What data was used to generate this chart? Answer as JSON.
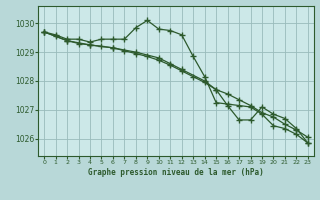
{
  "title": "Graphe pression niveau de la mer (hPa)",
  "background_color": "#b8d8d8",
  "plot_bg_color": "#cce8e8",
  "grid_color": "#99bbbb",
  "line_color": "#2d5a2d",
  "xlim": [
    -0.5,
    23.5
  ],
  "ylim": [
    1025.4,
    1030.6
  ],
  "yticks": [
    1026,
    1027,
    1028,
    1029,
    1030
  ],
  "xticks": [
    0,
    1,
    2,
    3,
    4,
    5,
    6,
    7,
    8,
    9,
    10,
    11,
    12,
    13,
    14,
    15,
    16,
    17,
    18,
    19,
    20,
    21,
    22,
    23
  ],
  "series": [
    {
      "x": [
        0,
        1,
        2,
        3,
        4,
        5,
        6,
        7,
        8,
        9,
        10,
        11,
        12,
        13,
        14,
        15,
        16,
        17,
        18,
        19,
        20,
        21,
        22,
        23
      ],
      "y": [
        1029.7,
        1029.6,
        1029.45,
        1029.45,
        1029.35,
        1029.45,
        1029.45,
        1029.45,
        1029.85,
        1030.1,
        1029.8,
        1029.75,
        1029.6,
        1028.85,
        1028.15,
        1027.25,
        1027.2,
        1027.15,
        1027.1,
        1026.85,
        1026.45,
        1026.35,
        1026.15,
        1025.85
      ]
    },
    {
      "x": [
        0,
        1,
        2,
        3,
        4,
        5,
        6,
        7,
        8,
        9,
        10,
        11,
        12,
        13,
        14,
        15,
        16,
        17,
        18,
        19,
        20,
        21,
        22,
        23
      ],
      "y": [
        1029.7,
        1029.55,
        1029.4,
        1029.3,
        1029.25,
        1029.2,
        1029.15,
        1029.05,
        1028.95,
        1028.85,
        1028.72,
        1028.55,
        1028.35,
        1028.15,
        1027.95,
        1027.7,
        1027.55,
        1027.35,
        1027.15,
        1026.9,
        1026.75,
        1026.5,
        1026.3,
        1026.05
      ]
    },
    {
      "x": [
        0,
        2,
        4,
        6,
        8,
        10,
        11,
        12,
        14,
        15,
        16,
        17,
        18,
        19,
        20,
        21,
        22,
        23
      ],
      "y": [
        1029.7,
        1029.4,
        1029.25,
        1029.15,
        1029.0,
        1028.8,
        1028.6,
        1028.4,
        1028.0,
        1027.7,
        1027.15,
        1026.65,
        1026.65,
        1027.1,
        1026.85,
        1026.7,
        1026.35,
        1025.85
      ]
    }
  ]
}
